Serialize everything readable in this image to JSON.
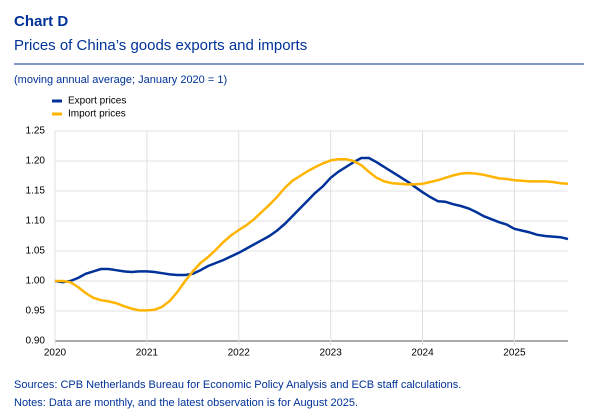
{
  "chart_data": {
    "type": "line",
    "title": "Chart D",
    "subtitle": "Prices of China’s goods exports and imports",
    "unit_note": "(moving annual average; January 2020 = 1)",
    "sources": "Sources: CPB Netherlands Bureau for Economic Policy Analysis and ECB staff calculations.",
    "notes": "Notes: Data are monthly, and the latest observation is for August 2025.",
    "categories": [
      "2020",
      null,
      null,
      null,
      null,
      null,
      null,
      null,
      null,
      null,
      null,
      null,
      "2021",
      null,
      null,
      null,
      null,
      null,
      null,
      null,
      null,
      null,
      null,
      null,
      "2022",
      null,
      null,
      null,
      null,
      null,
      null,
      null,
      null,
      null,
      null,
      null,
      "2023",
      null,
      null,
      null,
      null,
      null,
      null,
      null,
      null,
      null,
      null,
      null,
      "2024",
      null,
      null,
      null,
      null,
      null,
      null,
      null,
      null,
      null,
      null,
      null,
      "2025",
      null,
      null,
      null,
      null,
      null,
      null,
      null
    ],
    "series": [
      {
        "name": "Export prices",
        "color": "#003299",
        "values": [
          1.0,
          0.998,
          1.0,
          1.005,
          1.012,
          1.016,
          1.02,
          1.02,
          1.018,
          1.016,
          1.015,
          1.016,
          1.016,
          1.015,
          1.013,
          1.011,
          1.01,
          1.01,
          1.012,
          1.018,
          1.025,
          1.03,
          1.035,
          1.041,
          1.047,
          1.054,
          1.061,
          1.068,
          1.075,
          1.084,
          1.095,
          1.108,
          1.121,
          1.134,
          1.147,
          1.158,
          1.172,
          1.182,
          1.19,
          1.198,
          1.205,
          1.205,
          1.198,
          1.19,
          1.182,
          1.174,
          1.166,
          1.157,
          1.148,
          1.14,
          1.133,
          1.132,
          1.128,
          1.125,
          1.121,
          1.115,
          1.108,
          1.103,
          1.098,
          1.094,
          1.087,
          1.084,
          1.081,
          1.077,
          1.075,
          1.074,
          1.073,
          1.07
        ]
      },
      {
        "name": "Import prices",
        "color": "#ffb400",
        "values": [
          1.0,
          1.0,
          0.998,
          0.99,
          0.98,
          0.972,
          0.968,
          0.966,
          0.963,
          0.958,
          0.954,
          0.951,
          0.951,
          0.952,
          0.957,
          0.967,
          0.982,
          1.0,
          1.016,
          1.03,
          1.04,
          1.052,
          1.065,
          1.076,
          1.085,
          1.093,
          1.103,
          1.115,
          1.127,
          1.14,
          1.155,
          1.167,
          1.175,
          1.183,
          1.19,
          1.196,
          1.201,
          1.203,
          1.203,
          1.2,
          1.193,
          1.182,
          1.172,
          1.166,
          1.163,
          1.162,
          1.161,
          1.161,
          1.162,
          1.165,
          1.168,
          1.172,
          1.176,
          1.179,
          1.18,
          1.179,
          1.177,
          1.174,
          1.171,
          1.17,
          1.168,
          1.167,
          1.166,
          1.166,
          1.166,
          1.165,
          1.163,
          1.162
        ]
      }
    ],
    "ylim": [
      0.9,
      1.25
    ],
    "yticks": [
      {
        "value": 0.9,
        "label": "0.90"
      },
      0.95,
      {
        "value": 1.0,
        "label": "1.00"
      },
      1.05,
      {
        "value": 1.1,
        "label": "1.10"
      },
      1.15,
      {
        "value": 1.2,
        "label": "1.20"
      },
      1.25
    ],
    "grid": true,
    "legend": "top-left"
  }
}
